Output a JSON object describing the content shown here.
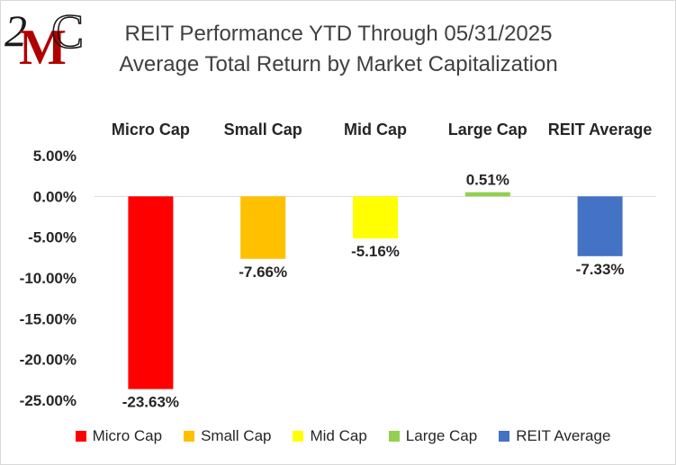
{
  "logo": {
    "text": "2MC",
    "colors": {
      "two": "#1a1a1a",
      "m": "#b00000",
      "c": "#1a1a1a"
    }
  },
  "chart_data": {
    "type": "bar",
    "title": "REIT Performance YTD Through 05/31/2025",
    "subtitle": "Average Total Return by Market Capitalization",
    "categories": [
      "Micro Cap",
      "Small Cap",
      "Mid Cap",
      "Large Cap",
      "REIT Average"
    ],
    "values": [
      -23.63,
      -7.66,
      -5.16,
      0.51,
      -7.33
    ],
    "data_labels": [
      "-23.63%",
      "-7.66%",
      "-5.16%",
      "0.51%",
      "-7.33%"
    ],
    "colors": [
      "#ff0000",
      "#ffc000",
      "#ffff00",
      "#92d050",
      "#4472c4"
    ],
    "ylim": [
      -25,
      5
    ],
    "yticks": [
      5,
      0,
      -5,
      -10,
      -15,
      -20,
      -25
    ],
    "ytick_labels": [
      "5.00%",
      "0.00%",
      "-5.00%",
      "-10.00%",
      "-15.00%",
      "-20.00%",
      "-25.00%"
    ],
    "category_label_position": "top",
    "grid": false,
    "legend": {
      "position": "bottom",
      "entries": [
        "Micro Cap",
        "Small Cap",
        "Mid Cap",
        "Large Cap",
        "REIT Average"
      ]
    }
  }
}
